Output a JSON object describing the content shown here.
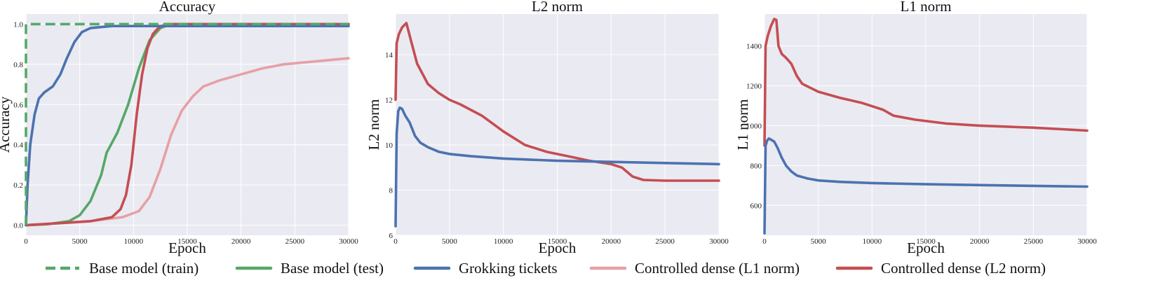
{
  "colors": {
    "base_train": "#55a868",
    "base_test": "#55a868",
    "grokking": "#4c72b0",
    "controlled_l1": "#e6a0a5",
    "controlled_l2": "#c44e52"
  },
  "legend": {
    "placement": "bottom-center",
    "entries": [
      {
        "key": "base_train",
        "label": "Base model (train)",
        "dashed": true
      },
      {
        "key": "base_test",
        "label": "Base model (test)",
        "dashed": false
      },
      {
        "key": "grokking",
        "label": "Grokking tickets",
        "dashed": false
      },
      {
        "key": "controlled_l1",
        "label": "Controlled dense (L1 norm)",
        "dashed": false
      },
      {
        "key": "controlled_l2",
        "label": "Controlled dense (L2 norm)",
        "dashed": false
      }
    ]
  },
  "chart_data": [
    {
      "type": "line",
      "title": "Accuracy",
      "xlabel": "Epoch",
      "ylabel": "Accuracy",
      "xlim": [
        0,
        30000
      ],
      "ylim": [
        -0.05,
        1.05
      ],
      "grid": true,
      "xticks": [
        0,
        5000,
        10000,
        15000,
        20000,
        25000,
        30000
      ],
      "xtick_labels": [
        "0",
        "5000",
        "10000",
        "15000",
        "20000",
        "25000",
        "30000"
      ],
      "yticks": [
        0.0,
        0.2,
        0.4,
        0.6,
        0.8,
        1.0
      ],
      "ytick_labels": [
        "0.0",
        "0.2",
        "0.4",
        "0.6",
        "0.8",
        "1.0"
      ],
      "series": [
        {
          "key": "controlled_l1",
          "name": "Controlled dense (L1 norm)",
          "dashed": false,
          "x": [
            0,
            3000,
            6000,
            9000,
            10500,
            11500,
            12500,
            13500,
            14500,
            15500,
            16500,
            18000,
            20000,
            22000,
            24000,
            26000,
            28000,
            30000
          ],
          "y": [
            0.0,
            0.01,
            0.02,
            0.04,
            0.07,
            0.14,
            0.28,
            0.45,
            0.57,
            0.64,
            0.69,
            0.72,
            0.75,
            0.78,
            0.8,
            0.81,
            0.82,
            0.83
          ]
        },
        {
          "key": "base_test",
          "name": "Base model (test)",
          "dashed": false,
          "x": [
            0,
            2000,
            4000,
            5000,
            6000,
            7000,
            7500,
            8500,
            9500,
            10500,
            11500,
            12500,
            13500,
            30000
          ],
          "y": [
            0.0,
            0.005,
            0.02,
            0.05,
            0.12,
            0.25,
            0.36,
            0.46,
            0.6,
            0.78,
            0.92,
            0.98,
            1.0,
            1.0
          ]
        },
        {
          "key": "controlled_l2",
          "name": "Controlled dense (L2 norm)",
          "dashed": false,
          "x": [
            0,
            3000,
            6000,
            8000,
            8800,
            9300,
            9800,
            10300,
            10800,
            11300,
            11800,
            12300,
            13000,
            30000
          ],
          "y": [
            0.0,
            0.01,
            0.02,
            0.04,
            0.08,
            0.15,
            0.3,
            0.55,
            0.75,
            0.88,
            0.95,
            0.98,
            1.0,
            1.0
          ]
        },
        {
          "key": "grokking",
          "name": "Grokking tickets",
          "dashed": false,
          "x": [
            0,
            150,
            400,
            800,
            1200,
            1700,
            2500,
            3200,
            3800,
            4500,
            5200,
            6000,
            8000,
            10000,
            30000
          ],
          "y": [
            0.0,
            0.2,
            0.4,
            0.55,
            0.63,
            0.66,
            0.69,
            0.75,
            0.83,
            0.91,
            0.96,
            0.98,
            0.99,
            0.99,
            0.99
          ]
        },
        {
          "key": "base_train",
          "name": "Base model (train)",
          "dashed": true,
          "x": [
            0,
            0,
            30000
          ],
          "y": [
            0.0,
            1.0,
            1.0
          ]
        }
      ]
    },
    {
      "type": "line",
      "title": "L2 norm",
      "xlabel": "Epoch",
      "ylabel": "L2 norm",
      "xlim": [
        0,
        30000
      ],
      "ylim": [
        6.0,
        15.8
      ],
      "grid": true,
      "xticks": [
        0,
        5000,
        10000,
        15000,
        20000,
        25000,
        30000
      ],
      "xtick_labels": [
        "0",
        "5000",
        "10000",
        "15000",
        "20000",
        "25000",
        "30000"
      ],
      "yticks": [
        6,
        8,
        10,
        12,
        14
      ],
      "ytick_labels": [
        "6",
        "8",
        "10",
        "12",
        "14"
      ],
      "series": [
        {
          "key": "controlled_l2",
          "name": "Controlled dense (L2 norm)",
          "dashed": false,
          "x": [
            0,
            100,
            300,
            600,
            1000,
            1500,
            2000,
            3000,
            4000,
            5000,
            6000,
            8000,
            10000,
            12000,
            14000,
            16000,
            18000,
            20000,
            21000,
            22000,
            23000,
            25000,
            27000,
            30000
          ],
          "y": [
            12.0,
            14.5,
            14.9,
            15.2,
            15.4,
            14.5,
            13.6,
            12.7,
            12.3,
            12.0,
            11.8,
            11.3,
            10.6,
            10.0,
            9.7,
            9.5,
            9.3,
            9.15,
            9.0,
            8.6,
            8.45,
            8.42,
            8.42,
            8.42
          ]
        },
        {
          "key": "grokking",
          "name": "Grokking tickets",
          "dashed": false,
          "x": [
            0,
            100,
            250,
            400,
            600,
            900,
            1300,
            1800,
            2300,
            3000,
            4000,
            5000,
            7000,
            10000,
            15000,
            20000,
            25000,
            30000
          ],
          "y": [
            6.4,
            10.5,
            11.5,
            11.65,
            11.6,
            11.3,
            11.0,
            10.4,
            10.1,
            9.9,
            9.7,
            9.6,
            9.5,
            9.4,
            9.3,
            9.25,
            9.2,
            9.15
          ]
        }
      ]
    },
    {
      "type": "line",
      "title": "L1 norm",
      "xlabel": "Epoch",
      "ylabel": "L1 norm",
      "xlim": [
        0,
        30000
      ],
      "ylim": [
        450,
        1560
      ],
      "grid": true,
      "xticks": [
        0,
        5000,
        10000,
        15000,
        20000,
        25000,
        30000
      ],
      "xtick_labels": [
        "0",
        "5000",
        "10000",
        "15000",
        "20000",
        "25000",
        "30000"
      ],
      "yticks": [
        600,
        800,
        1000,
        1200,
        1400
      ],
      "ytick_labels": [
        "600",
        "800",
        "1000",
        "1200",
        "1400"
      ],
      "series": [
        {
          "key": "controlled_l2",
          "name": "Controlled dense (L2 norm)",
          "dashed": false,
          "x": [
            0,
            100,
            300,
            600,
            900,
            1100,
            1300,
            1600,
            2000,
            2500,
            3000,
            3500,
            5000,
            7000,
            9000,
            11000,
            12000,
            14000,
            17000,
            20000,
            25000,
            30000
          ],
          "y": [
            900,
            1400,
            1450,
            1500,
            1535,
            1530,
            1400,
            1360,
            1340,
            1310,
            1250,
            1210,
            1170,
            1140,
            1115,
            1080,
            1050,
            1030,
            1010,
            1000,
            990,
            975
          ]
        },
        {
          "key": "grokking",
          "name": "Grokking tickets",
          "dashed": false,
          "x": [
            0,
            100,
            250,
            400,
            600,
            900,
            1200,
            1600,
            2000,
            2500,
            3000,
            4000,
            5000,
            7000,
            10000,
            15000,
            20000,
            25000,
            30000
          ],
          "y": [
            460,
            900,
            925,
            935,
            930,
            920,
            890,
            840,
            800,
            770,
            750,
            735,
            725,
            718,
            712,
            706,
            702,
            698,
            694
          ]
        }
      ]
    }
  ]
}
